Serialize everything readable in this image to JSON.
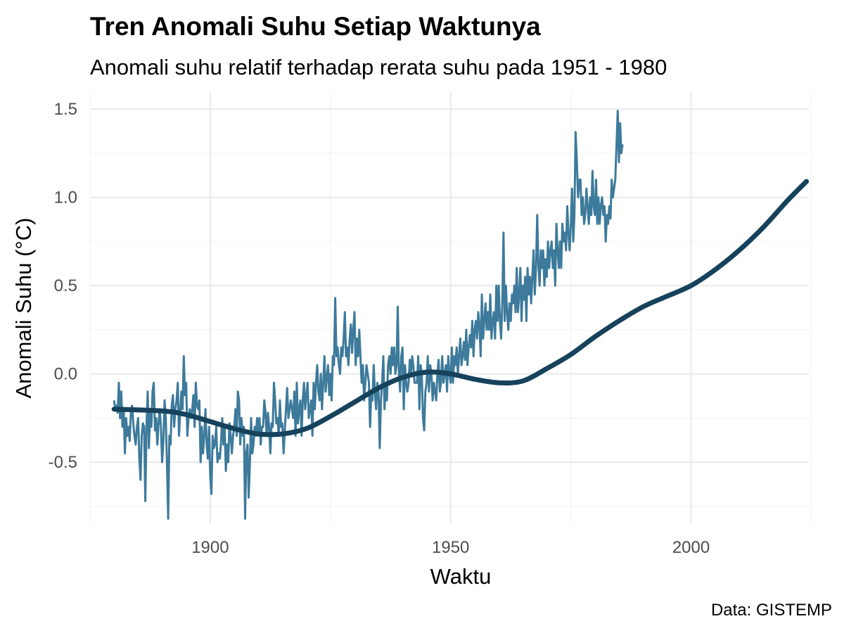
{
  "chart_data": {
    "type": "line",
    "title": "Tren Anomali Suhu Setiap Waktunya",
    "subtitle": "Anomali suhu relatif terhadap rerata suhu pada 1951 - 1980",
    "xlabel": "Waktu",
    "ylabel": "Anomali Suhu (°C)",
    "caption": "Data: GISTEMP",
    "xlim": [
      1875,
      2024.5
    ],
    "ylim": [
      -0.85,
      1.6
    ],
    "x_ticks": [
      1900,
      1950,
      2000
    ],
    "x_tick_labels": [
      "1900",
      "1950",
      "2000"
    ],
    "y_ticks": [
      -0.5,
      0.0,
      0.5,
      1.0,
      1.5
    ],
    "y_tick_labels": [
      "-0.5",
      "0.0",
      "0.5",
      "1.0",
      "1.5"
    ],
    "x_minor_ticks": [
      1875,
      1925,
      1975,
      2025
    ],
    "y_minor_ticks": [
      -0.75,
      -0.25,
      0.25,
      0.75,
      1.25
    ],
    "grid": true,
    "legend": "none",
    "colors": {
      "series": "#3d7a9b",
      "trend": "#16425b"
    },
    "series": [
      {
        "role": "monthly",
        "x_start": 1880,
        "x_step": 0.25,
        "values": [
          -0.15,
          -0.2,
          -0.18,
          -0.22,
          -0.05,
          -0.25,
          -0.1,
          -0.3,
          -0.2,
          -0.45,
          -0.25,
          -0.35,
          -0.3,
          -0.38,
          -0.22,
          -0.18,
          -0.28,
          -0.35,
          -0.4,
          -0.3,
          -0.25,
          -0.48,
          -0.6,
          -0.35,
          -0.28,
          -0.3,
          -0.72,
          -0.3,
          -0.1,
          -0.42,
          -0.22,
          -0.3,
          -0.1,
          -0.05,
          -0.32,
          -0.25,
          -0.4,
          -0.28,
          -0.2,
          -0.3,
          -0.5,
          -0.38,
          -0.15,
          -0.25,
          -0.5,
          -0.82,
          -0.35,
          -0.4,
          -0.18,
          -0.12,
          -0.3,
          -0.2,
          -0.15,
          -0.05,
          -0.35,
          -0.22,
          -0.1,
          -0.2,
          0.1,
          -0.12,
          -0.05,
          -0.35,
          -0.25,
          -0.2,
          -0.25,
          -0.2,
          -0.12,
          -0.3,
          -0.05,
          -0.18,
          -0.2,
          -0.15,
          -0.5,
          -0.3,
          -0.45,
          -0.35,
          -0.2,
          -0.4,
          -0.48,
          -0.3,
          -0.58,
          -0.68,
          -0.35,
          -0.42,
          -0.4,
          -0.3,
          -0.5,
          -0.45,
          -0.48,
          -0.38,
          -0.25,
          -0.4,
          -0.3,
          -0.55,
          -0.4,
          -0.5,
          -0.28,
          -0.35,
          -0.45,
          -0.35,
          -0.3,
          -0.2,
          -0.35,
          -0.1,
          -0.15,
          -0.4,
          -0.25,
          -0.35,
          -0.3,
          -0.82,
          -0.45,
          -0.4,
          -0.7,
          -0.5,
          -0.25,
          -0.45,
          -0.4,
          -0.3,
          -0.35,
          -0.25,
          -0.35,
          -0.25,
          -0.4,
          -0.3,
          -0.3,
          -0.15,
          -0.22,
          -0.35,
          -0.22,
          -0.3,
          -0.45,
          -0.28,
          -0.3,
          -0.05,
          -0.15,
          -0.28,
          -0.25,
          -0.35,
          -0.15,
          -0.3,
          -0.28,
          -0.45,
          -0.32,
          -0.2,
          -0.08,
          -0.25,
          -0.2,
          -0.15,
          -0.2,
          -0.25,
          -0.1,
          -0.35,
          -0.05,
          -0.28,
          -0.2,
          -0.15,
          -0.35,
          -0.15,
          -0.05,
          -0.2,
          -0.12,
          -0.05,
          -0.25,
          -0.2,
          -0.15,
          -0.35,
          -0.05,
          -0.2,
          -0.05,
          0.05,
          -0.1,
          -0.15,
          0.0,
          -0.2,
          -0.05,
          0.1,
          -0.1,
          -0.02,
          0.05,
          -0.12,
          0.0,
          -0.15,
          0.1,
          0.05,
          0.43,
          0.1,
          0.15,
          0.05,
          0.0,
          0.15,
          0.1,
          0.2,
          0.35,
          0.1,
          0.15,
          0.05,
          0.2,
          0.28,
          0.12,
          0.25,
          0.35,
          0.05,
          0.2,
          0.1,
          0.25,
          0.1,
          -0.05,
          0.05,
          -0.15,
          -0.05,
          0.05,
          0.0,
          -0.05,
          -0.3,
          -0.1,
          -0.15,
          0.05,
          -0.1,
          -0.2,
          -0.05,
          -0.1,
          -0.42,
          -0.15,
          -0.05,
          0.1,
          -0.2,
          -0.05,
          -0.15,
          0.05,
          0.1,
          0.0,
          0.15,
          0.05,
          0.15,
          0.0,
          0.05,
          0.38,
          0.0,
          -0.1,
          0.1,
          0.15,
          -0.2,
          0.05,
          -0.05,
          -0.1,
          -0.05,
          0.08,
          0.0,
          0.1,
          0.05,
          -0.05,
          -0.05,
          -0.05,
          0.1,
          -0.2,
          0.05,
          0.0,
          -0.25,
          -0.32,
          -0.1,
          -0.05,
          0.1,
          -0.1,
          0.05,
          0.0,
          -0.15,
          -0.05,
          -0.1,
          -0.15,
          0.0,
          0.08,
          -0.1,
          -0.05,
          0.1,
          -0.05,
          0.0,
          0.05,
          -0.1,
          0.1,
          0.0,
          -0.05,
          0.15,
          -0.05,
          0.1,
          0.05,
          0.15,
          0.0,
          0.1,
          0.2,
          0.05,
          0.1,
          0.18,
          0.08,
          0.25,
          0.05,
          0.15,
          0.22,
          0.15,
          0.3,
          0.1,
          0.25,
          0.3,
          0.2,
          0.35,
          0.28,
          0.1,
          0.45,
          0.2,
          0.3,
          0.4,
          0.25,
          0.35,
          0.25,
          0.45,
          0.2,
          0.3,
          0.35,
          0.2,
          0.5,
          0.3,
          0.5,
          0.3,
          0.2,
          0.4,
          0.8,
          0.3,
          0.5,
          0.35,
          0.25,
          0.4,
          0.3,
          0.45,
          0.4,
          0.5,
          0.35,
          0.6,
          0.35,
          0.45,
          0.6,
          0.3,
          0.5,
          0.42,
          0.55,
          0.3,
          0.6,
          0.45,
          0.55,
          0.4,
          0.55,
          0.7,
          0.45,
          0.6,
          0.9,
          0.62,
          0.5,
          0.7,
          0.6,
          0.7,
          0.5,
          0.65,
          0.55,
          0.75,
          0.6,
          0.7,
          0.75,
          0.6,
          0.7,
          0.5,
          0.85,
          0.7,
          0.6,
          0.75,
          0.6,
          0.85,
          0.75,
          0.8,
          0.7,
          0.95,
          0.8,
          0.7,
          0.85,
          1.05,
          0.75,
          0.9,
          1.37,
          1.2,
          1.0,
          1.1,
          1.1,
          0.9,
          1.0,
          0.85,
          0.9,
          1.05,
          0.95,
          0.85,
          1.0,
          0.9,
          1.15,
          0.95,
          0.9,
          1.1,
          0.85,
          1.0,
          0.85,
          0.95,
          1.0,
          0.9,
          0.95,
          0.75,
          0.9,
          0.85,
          0.95,
          0.88,
          1.1,
          1.0,
          1.05,
          1.1,
          1.3,
          1.49,
          1.2,
          1.42,
          1.25,
          1.3
        ]
      },
      {
        "role": "trend",
        "x": [
          1880,
          1890,
          1895,
          1900,
          1905,
          1910,
          1915,
          1920,
          1925,
          1930,
          1935,
          1940,
          1945,
          1950,
          1955,
          1960,
          1965,
          1970,
          1975,
          1980,
          1985,
          1990,
          1995,
          2000,
          2005,
          2010,
          2015,
          2020,
          2024
        ],
        "values": [
          -0.2,
          -0.21,
          -0.23,
          -0.27,
          -0.31,
          -0.34,
          -0.34,
          -0.31,
          -0.24,
          -0.16,
          -0.08,
          -0.02,
          0.01,
          0.0,
          -0.03,
          -0.05,
          -0.04,
          0.03,
          0.11,
          0.21,
          0.3,
          0.38,
          0.44,
          0.5,
          0.59,
          0.7,
          0.83,
          0.98,
          1.09
        ]
      }
    ]
  }
}
